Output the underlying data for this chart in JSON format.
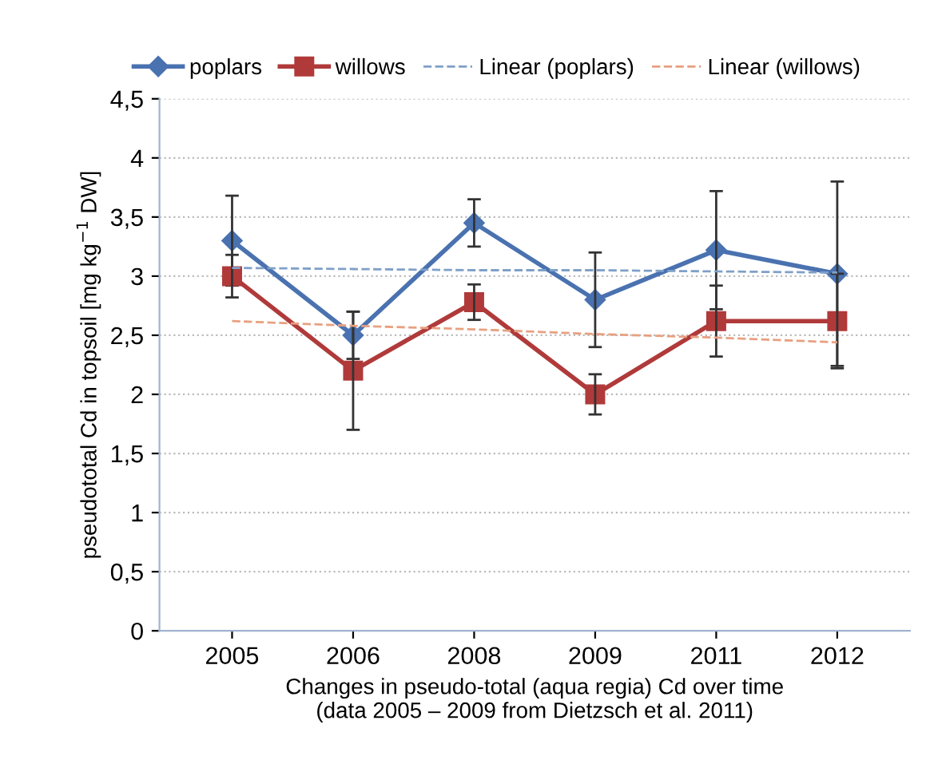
{
  "chart_data": {
    "type": "line",
    "categories": [
      "2005",
      "2006",
      "2008",
      "2009",
      "2011",
      "2012"
    ],
    "ylabel": "pseudototal Cd in topsoil [mg kg$^{−1}$ DW]",
    "xlabel": "Changes in pseudo-total (aqua regia) Cd over time\n(data 2005 – 2009 from Dietzsch et al. 2011)",
    "ylim": [
      0,
      4.5
    ],
    "yticks": [
      0,
      {
        "value": 0.5,
        "label": "0,5"
      },
      1,
      {
        "value": 1.5,
        "label": "1,5"
      },
      2,
      {
        "value": 2.5,
        "label": "2,5"
      },
      3,
      {
        "value": 3.5,
        "label": "3,5"
      },
      4,
      {
        "value": 4.5,
        "label": "4,5"
      }
    ],
    "grid": "y",
    "legend": "top",
    "series": [
      {
        "name": "poplars",
        "color": "#4a72b0",
        "marker": "diamond",
        "line_style": "solid",
        "values": [
          3.3,
          2.5,
          3.45,
          2.8,
          3.22,
          3.02
        ],
        "errors": [
          0.38,
          0.2,
          0.2,
          0.4,
          0.5,
          0.78
        ]
      },
      {
        "name": "willows",
        "color": "#b03a3a",
        "marker": "square",
        "line_style": "solid",
        "values": [
          3.0,
          2.2,
          2.78,
          2.0,
          2.62,
          2.62
        ],
        "errors": [
          0.18,
          0.5,
          0.15,
          0.17,
          0.3,
          0.4
        ]
      },
      {
        "name": "Linear (poplars)",
        "color": "#7fa0c8",
        "marker": "none",
        "line_style": "dashed",
        "values": [
          3.07,
          3.06,
          3.05,
          3.05,
          3.04,
          3.03
        ]
      },
      {
        "name": "Linear (willows)",
        "color": "#e8a080",
        "marker": "none",
        "line_style": "dashed",
        "values": [
          2.62,
          2.58,
          2.55,
          2.51,
          2.48,
          2.44
        ]
      }
    ]
  }
}
